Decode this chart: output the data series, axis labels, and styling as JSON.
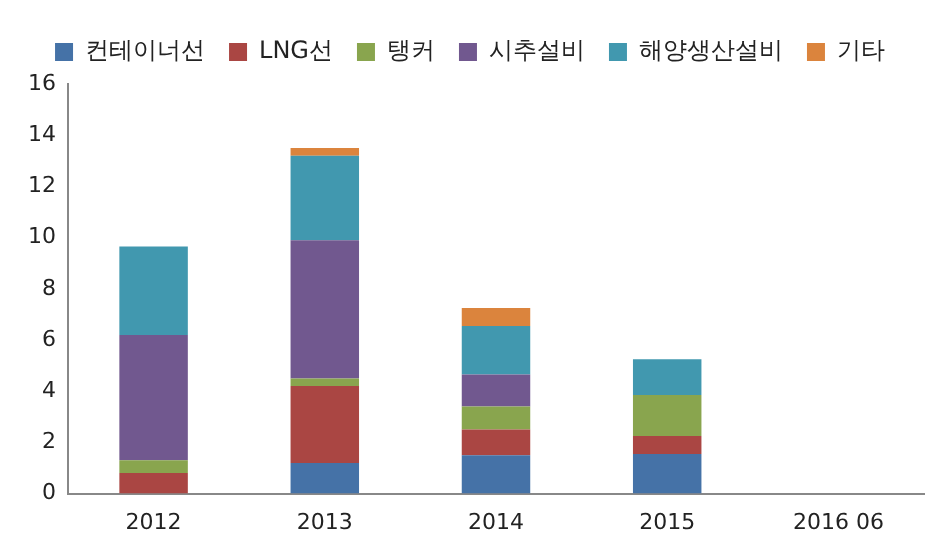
{
  "chart_data": {
    "type": "bar",
    "stacked": true,
    "categories": [
      "2012",
      "2013",
      "2014",
      "2015",
      "2016 06"
    ],
    "series": [
      {
        "name": "컨테이너선",
        "color": "#4572a7",
        "values": [
          0,
          1.2,
          1.5,
          1.55,
          0
        ]
      },
      {
        "name": "LNG선",
        "color": "#aa4643",
        "values": [
          0.8,
          3.0,
          1.0,
          0.7,
          0
        ]
      },
      {
        "name": "탱커",
        "color": "#89a54e",
        "values": [
          0.5,
          0.3,
          0.9,
          1.6,
          0
        ]
      },
      {
        "name": "시추설비",
        "color": "#71588f",
        "values": [
          4.9,
          5.4,
          1.25,
          0,
          0
        ]
      },
      {
        "name": "해양생산설비",
        "color": "#4198af",
        "values": [
          3.45,
          3.3,
          1.9,
          1.4,
          0
        ]
      },
      {
        "name": "기타",
        "color": "#db843d",
        "values": [
          0,
          0.3,
          0.7,
          0,
          0
        ]
      }
    ],
    "ylim": [
      0,
      16
    ],
    "yticks": [
      0,
      2,
      4,
      6,
      8,
      10,
      12,
      14,
      16
    ],
    "grid": false,
    "legend": "top"
  }
}
